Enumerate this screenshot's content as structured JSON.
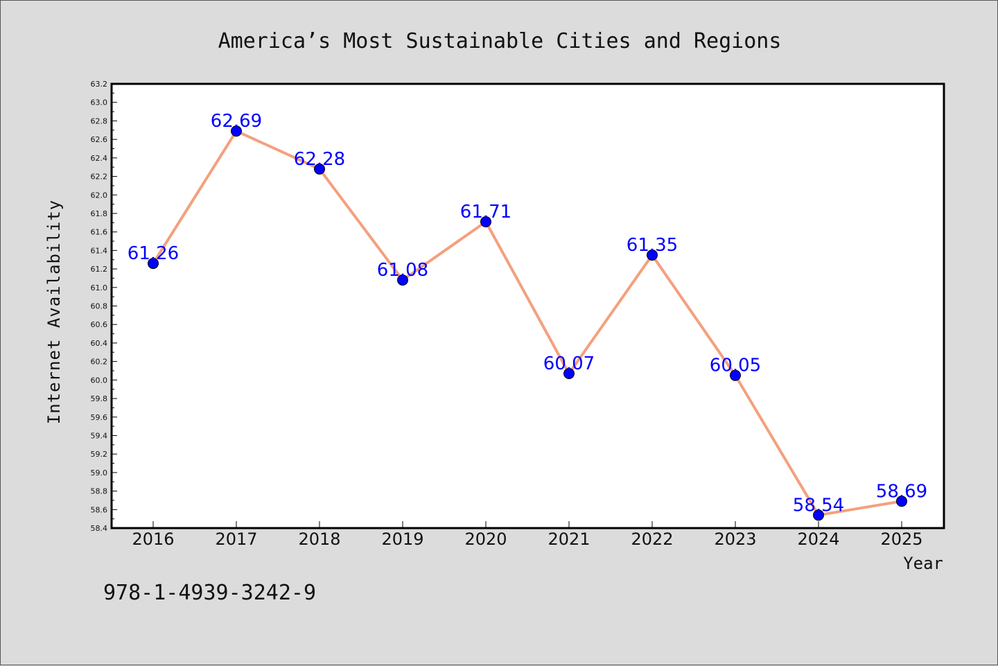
{
  "chart_data": {
    "type": "line",
    "title": "America’s Most Sustainable Cities and Regions",
    "xlabel": "Year",
    "ylabel": "Internet Availability",
    "categories": [
      "2016",
      "2017",
      "2018",
      "2019",
      "2020",
      "2021",
      "2022",
      "2023",
      "2024",
      "2025"
    ],
    "values": [
      61.26,
      62.69,
      62.28,
      61.08,
      61.71,
      60.07,
      61.35,
      60.05,
      58.54,
      58.69
    ],
    "data_labels": [
      "61.26",
      "62.69",
      "62.28",
      "61.08",
      "61.71",
      "60.07",
      "61.35",
      "60.05",
      "58.54",
      "58.69"
    ],
    "ylim": [
      58.4,
      63.2
    ],
    "yticks": [
      "58.4",
      "58.6",
      "58.8",
      "59.0",
      "59.2",
      "59.4",
      "59.6",
      "59.8",
      "60.0",
      "60.2",
      "60.4",
      "60.6",
      "60.8",
      "61.0",
      "61.2",
      "61.4",
      "61.6",
      "61.8",
      "62.0",
      "62.2",
      "62.4",
      "62.6",
      "62.8",
      "63.0",
      "63.2"
    ],
    "grid": false,
    "line_color": "#f4a07e",
    "marker_color": "#0000ff",
    "label_color": "#0000ff",
    "plot_background": "#ffffff",
    "figure_background": "#dcdcdc"
  },
  "footnote": "978-1-4939-3242-9"
}
